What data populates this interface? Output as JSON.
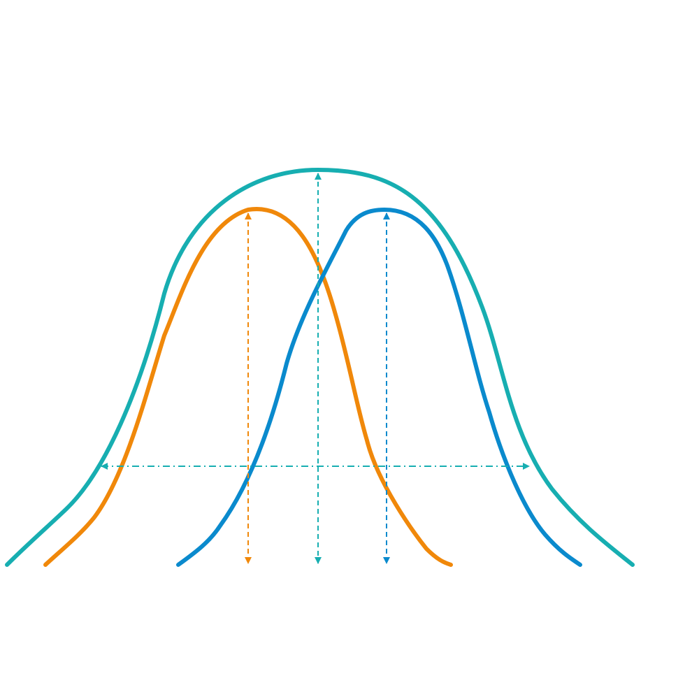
{
  "diagram": {
    "colors": {
      "wide_curve": "#17aeb1",
      "left_curve": "#f0880a",
      "right_curve": "#0a8acd",
      "background": "#ffffff"
    },
    "curves": [
      {
        "id": "wide",
        "color_key": "wide_curve"
      },
      {
        "id": "left",
        "color_key": "left_curve"
      },
      {
        "id": "right",
        "color_key": "right_curve"
      }
    ]
  }
}
